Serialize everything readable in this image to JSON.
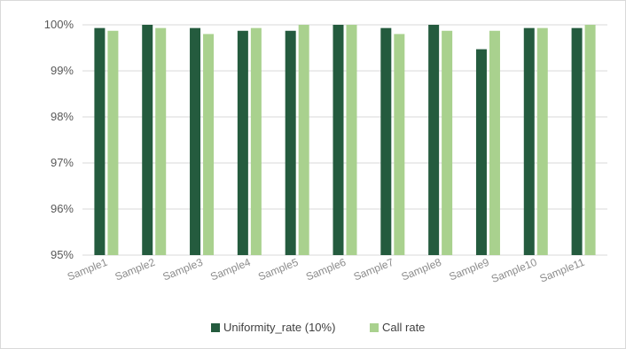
{
  "chart_data": {
    "type": "bar",
    "categories": [
      "Sample1",
      "Sample2",
      "Sample3",
      "Sample4",
      "Sample5",
      "Sample6",
      "Sample7",
      "Sample8",
      "Sample9",
      "Sample10",
      "Sample11"
    ],
    "series": [
      {
        "name": "Uniformity_rate (10%)",
        "color": "#245b3e",
        "values": [
          99.93,
          100.0,
          99.93,
          99.87,
          99.87,
          100.0,
          99.93,
          100.0,
          99.47,
          99.93,
          99.93
        ]
      },
      {
        "name": "Call rate",
        "color": "#a9d18e",
        "values": [
          99.87,
          99.93,
          99.8,
          99.93,
          100.0,
          100.0,
          99.8,
          99.87,
          99.87,
          99.93,
          100.0
        ]
      }
    ],
    "yticks": [
      "95%",
      "96%",
      "97%",
      "98%",
      "99%",
      "100%"
    ],
    "ylim": [
      95,
      100
    ],
    "grid": true,
    "legend_position": "bottom",
    "gridline_color": "#d9d9d9"
  }
}
